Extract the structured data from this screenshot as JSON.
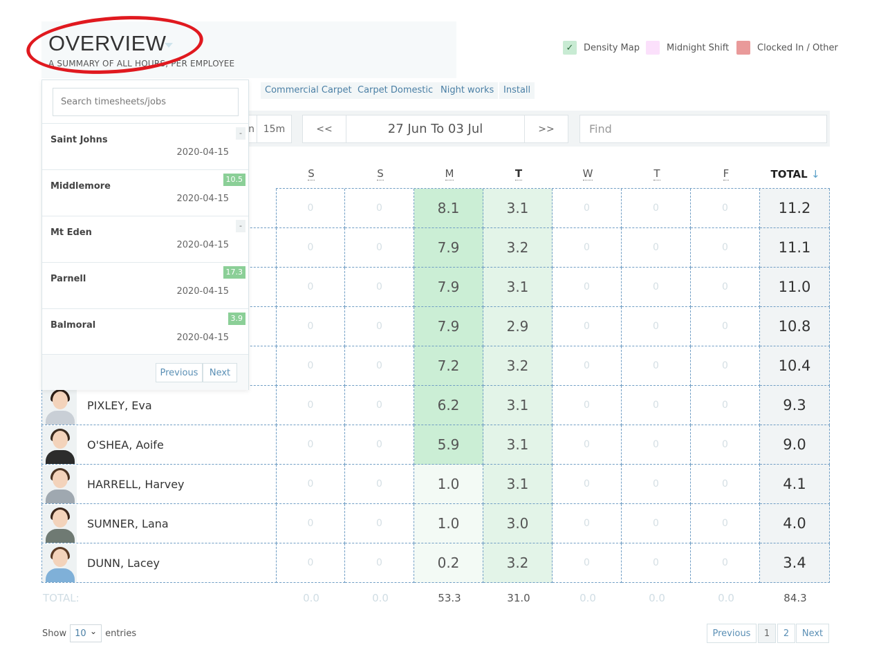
{
  "header": {
    "title": "OVERVIEW",
    "subtitle": "A SUMMARY OF ALL HOURS, PER EMPLOYEE"
  },
  "legend": [
    {
      "label": "Density Map",
      "color": "#c8ebd3",
      "checked": true,
      "check_glyph": "✓"
    },
    {
      "label": "Midnight Shift",
      "color": "#fbe0fb",
      "checked": false
    },
    {
      "label": "Clocked In / Other",
      "color": "#e99a9a",
      "checked": false
    }
  ],
  "tags": [
    "Commercial Carpet",
    "Carpet Domestic",
    "Night works",
    "Install"
  ],
  "toolbar": {
    "partial_label": "n",
    "interval": "15m",
    "prev": "<<",
    "range": "27 Jun To 03 Jul",
    "next": ">>",
    "find_placeholder": "Find"
  },
  "days": [
    {
      "label": "S",
      "bold": false
    },
    {
      "label": "S",
      "bold": false
    },
    {
      "label": "M",
      "bold": false
    },
    {
      "label": "T",
      "bold": true
    },
    {
      "label": "W",
      "bold": false
    },
    {
      "label": "T",
      "bold": false
    },
    {
      "label": "F",
      "bold": false
    }
  ],
  "total_header": "TOTAL",
  "total_arrow": "↓",
  "employees": [
    {
      "name": "",
      "hours": [
        "0",
        "0",
        "8.1",
        "3.1",
        "0",
        "0",
        "0"
      ],
      "total": "11.2"
    },
    {
      "name": "",
      "hours": [
        "0",
        "0",
        "7.9",
        "3.2",
        "0",
        "0",
        "0"
      ],
      "total": "11.1"
    },
    {
      "name": "",
      "hours": [
        "0",
        "0",
        "7.9",
        "3.1",
        "0",
        "0",
        "0"
      ],
      "total": "11.0"
    },
    {
      "name": "",
      "hours": [
        "0",
        "0",
        "7.9",
        "2.9",
        "0",
        "0",
        "0"
      ],
      "total": "10.8"
    },
    {
      "name": "",
      "hours": [
        "0",
        "0",
        "7.2",
        "3.2",
        "0",
        "0",
        "0"
      ],
      "total": "10.4"
    },
    {
      "name": "PIXLEY, Eva",
      "hours": [
        "0",
        "0",
        "6.2",
        "3.1",
        "0",
        "0",
        "0"
      ],
      "total": "9.3"
    },
    {
      "name": "O'SHEA, Aoife",
      "hours": [
        "0",
        "0",
        "5.9",
        "3.1",
        "0",
        "0",
        "0"
      ],
      "total": "9.0"
    },
    {
      "name": "HARRELL, Harvey",
      "hours": [
        "0",
        "0",
        "1.0",
        "3.1",
        "0",
        "0",
        "0"
      ],
      "total": "4.1"
    },
    {
      "name": "SUMNER, Lana",
      "hours": [
        "0",
        "0",
        "1.0",
        "3.0",
        "0",
        "0",
        "0"
      ],
      "total": "4.0"
    },
    {
      "name": "DUNN, Lacey",
      "hours": [
        "0",
        "0",
        "0.2",
        "3.2",
        "0",
        "0",
        "0"
      ],
      "total": "3.4"
    }
  ],
  "avatars": [
    {
      "hair": "#2b1d15",
      "body": "#c9cfd6"
    },
    {
      "hair": "#3a2a1e",
      "body": "#2c2c2c"
    },
    {
      "hair": "#4a3322",
      "body": "#9fa8b0"
    },
    {
      "hair": "#3b261a",
      "body": "#6f7a73"
    },
    {
      "hair": "#5a3a24",
      "body": "#7fb0d8"
    }
  ],
  "totals": {
    "label": "TOTAL:",
    "values": [
      "0.0",
      "0.0",
      "53.3",
      "31.0",
      "0.0",
      "0.0",
      "0.0"
    ],
    "grand": "84.3"
  },
  "footer": {
    "show": "Show",
    "entries_value": "10",
    "entries": "entries",
    "caret": "⌄",
    "previous": "Previous",
    "page1": "1",
    "page2": "2",
    "next": "Next"
  },
  "dropdown": {
    "search_placeholder": "Search timesheets/jobs",
    "items": [
      {
        "name": "Saint Johns",
        "date": "2020-04-15",
        "badge": "-",
        "badge_type": "plain"
      },
      {
        "name": "Middlemore",
        "date": "2020-04-15",
        "badge": "10.5",
        "badge_type": "green"
      },
      {
        "name": "Mt Eden",
        "date": "2020-04-15",
        "badge": "-",
        "badge_type": "plain"
      },
      {
        "name": "Parnell",
        "date": "2020-04-15",
        "badge": "17.3",
        "badge_type": "green"
      },
      {
        "name": "Balmoral",
        "date": "2020-04-15",
        "badge": "3.9",
        "badge_type": "green"
      }
    ],
    "previous": "Previous",
    "next": "Next"
  },
  "colors": {
    "density_max": "#cbeed5",
    "density_mid": "#e3f4e8",
    "density_low": "#f3faf5",
    "grid_line": "#6f9dc4",
    "annotation": "#e0191f"
  }
}
